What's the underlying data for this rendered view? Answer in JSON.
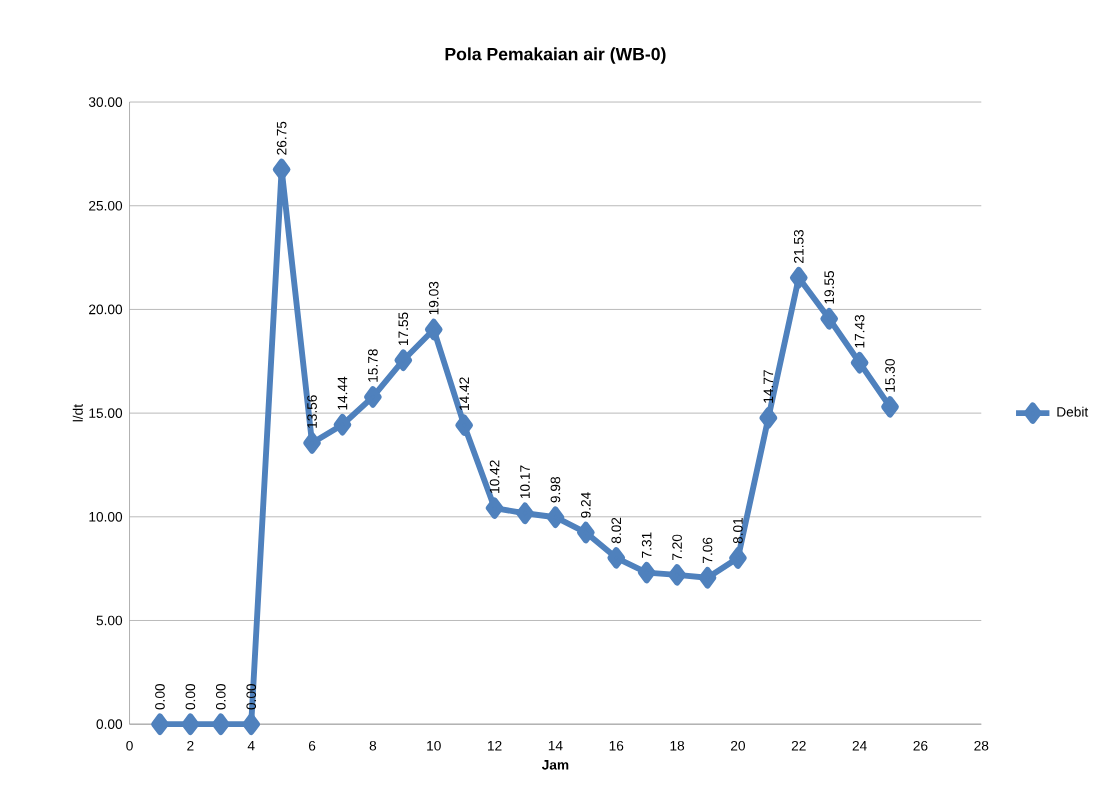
{
  "chart_data": {
    "type": "line",
    "title": "Pola Pemakaian air (WB-0)",
    "xlabel": "Jam",
    "ylabel": "l/dt",
    "x": [
      1,
      2,
      3,
      4,
      5,
      6,
      7,
      8,
      9,
      10,
      11,
      12,
      13,
      14,
      15,
      16,
      17,
      18,
      19,
      20,
      21,
      22,
      23,
      24,
      25
    ],
    "series": [
      {
        "name": "Debit",
        "color": "#4f81bd",
        "values": [
          0,
          0,
          0,
          0,
          26.75,
          13.56,
          14.44,
          15.78,
          17.55,
          19.03,
          14.42,
          10.42,
          10.17,
          9.98,
          9.24,
          8.02,
          7.31,
          7.2,
          7.06,
          8.01,
          14.77,
          21.53,
          19.55,
          17.43,
          15.3
        ],
        "value_labels": [
          "0.00",
          "0.00",
          "0.00",
          "0.00",
          "26.75",
          "13.56",
          "14.44",
          "15.78",
          "17.55",
          "19.03",
          "14.42",
          "10.42",
          "10.17",
          "9.98",
          "9.24",
          "8.02",
          "7.31",
          "7.20",
          "7.06",
          "8.01",
          "14.77",
          "21.53",
          "19.55",
          "17.43",
          "15.30"
        ]
      }
    ],
    "xlim": [
      0,
      28
    ],
    "xticks": [
      0,
      2,
      4,
      6,
      8,
      10,
      12,
      14,
      16,
      18,
      20,
      22,
      24,
      26,
      28
    ],
    "ylim": [
      0,
      30
    ],
    "yticks": [
      {
        "value": 0,
        "label": "0.00"
      },
      {
        "value": 5,
        "label": "5.00"
      },
      {
        "value": 10,
        "label": "10.00"
      },
      {
        "value": 15,
        "label": "15.00"
      },
      {
        "value": 20,
        "label": "20.00"
      },
      {
        "value": 25,
        "label": "25.00"
      },
      {
        "value": 30,
        "label": "30.00"
      }
    ],
    "grid": "y",
    "legend": "right",
    "marker": "diamond",
    "line_style": "solid"
  }
}
